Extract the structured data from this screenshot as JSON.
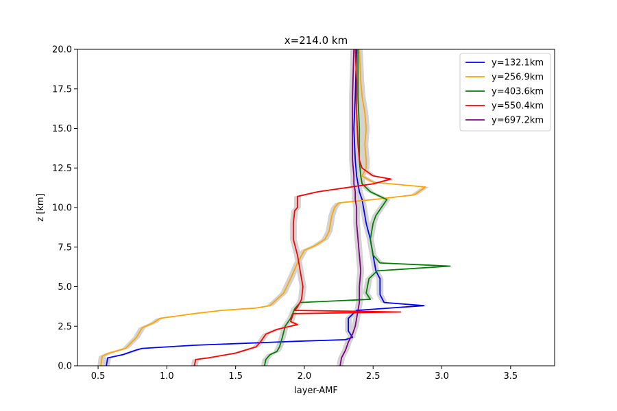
{
  "chart_data": {
    "type": "line",
    "title": "x=214.0 km",
    "xlabel": "layer-AMF",
    "ylabel": "z [km]",
    "xlim": [
      0.35,
      3.82
    ],
    "ylim": [
      0,
      20
    ],
    "xticks": [
      0.5,
      1.0,
      1.5,
      2.0,
      2.5,
      3.0,
      3.5
    ],
    "xtick_labels": [
      "0.5",
      "1.0",
      "1.5",
      "2.0",
      "2.5",
      "3.0",
      "3.5"
    ],
    "yticks": [
      0.0,
      2.5,
      5.0,
      7.5,
      10.0,
      12.5,
      15.0,
      17.5,
      20.0
    ],
    "ytick_labels": [
      "0.0",
      "2.5",
      "5.0",
      "7.5",
      "10.0",
      "12.5",
      "15.0",
      "17.5",
      "20.0"
    ],
    "grid": false,
    "legend_position": "top-right",
    "uncertainty_band_color": "#d3d3d3",
    "series": [
      {
        "name": "y=132.1km",
        "color": "#0000ff",
        "points": [
          [
            0.56,
            0.0
          ],
          [
            0.57,
            0.5
          ],
          [
            0.68,
            0.7
          ],
          [
            0.78,
            1.0
          ],
          [
            0.82,
            1.1
          ],
          [
            1.2,
            1.3
          ],
          [
            1.95,
            1.55
          ],
          [
            2.3,
            1.65
          ],
          [
            2.35,
            1.8
          ],
          [
            2.32,
            2.2
          ],
          [
            2.32,
            3.0
          ],
          [
            2.38,
            3.5
          ],
          [
            2.87,
            3.8
          ],
          [
            2.58,
            4.0
          ],
          [
            2.55,
            4.5
          ],
          [
            2.55,
            5.5
          ],
          [
            2.52,
            6.0
          ],
          [
            2.5,
            7.0
          ],
          [
            2.48,
            8.0
          ],
          [
            2.45,
            9.0
          ],
          [
            2.43,
            10.0
          ],
          [
            2.42,
            10.5
          ],
          [
            2.4,
            11.0
          ],
          [
            2.38,
            12.0
          ],
          [
            2.37,
            13.0
          ],
          [
            2.36,
            15.0
          ],
          [
            2.37,
            17.0
          ],
          [
            2.38,
            20.0
          ]
        ]
      },
      {
        "name": "y=256.9km",
        "color": "#ffa500",
        "points": [
          [
            0.52,
            0.0
          ],
          [
            0.53,
            0.6
          ],
          [
            0.58,
            0.8
          ],
          [
            0.7,
            1.1
          ],
          [
            0.78,
            1.8
          ],
          [
            0.82,
            2.4
          ],
          [
            0.9,
            2.7
          ],
          [
            0.95,
            3.0
          ],
          [
            1.2,
            3.3
          ],
          [
            1.4,
            3.5
          ],
          [
            1.65,
            3.65
          ],
          [
            1.75,
            3.8
          ],
          [
            1.8,
            4.2
          ],
          [
            1.85,
            4.6
          ],
          [
            1.9,
            5.5
          ],
          [
            1.95,
            6.5
          ],
          [
            2.0,
            7.3
          ],
          [
            2.08,
            7.6
          ],
          [
            2.15,
            8.0
          ],
          [
            2.18,
            8.5
          ],
          [
            2.2,
            9.5
          ],
          [
            2.22,
            10.0
          ],
          [
            2.25,
            10.3
          ],
          [
            2.5,
            10.5
          ],
          [
            2.8,
            10.8
          ],
          [
            2.88,
            11.3
          ],
          [
            2.5,
            11.6
          ],
          [
            2.42,
            12.0
          ],
          [
            2.45,
            12.5
          ],
          [
            2.45,
            13.0
          ],
          [
            2.44,
            14.0
          ],
          [
            2.45,
            15.0
          ],
          [
            2.44,
            16.0
          ],
          [
            2.42,
            17.0
          ],
          [
            2.41,
            18.0
          ],
          [
            2.4,
            20.0
          ]
        ]
      },
      {
        "name": "y=403.6km",
        "color": "#008000",
        "points": [
          [
            1.71,
            0.0
          ],
          [
            1.72,
            0.4
          ],
          [
            1.75,
            0.7
          ],
          [
            1.8,
            0.9
          ],
          [
            1.82,
            1.2
          ],
          [
            1.84,
            1.8
          ],
          [
            1.86,
            2.5
          ],
          [
            1.9,
            3.0
          ],
          [
            1.93,
            3.6
          ],
          [
            1.97,
            4.0
          ],
          [
            2.48,
            4.2
          ],
          [
            2.45,
            4.6
          ],
          [
            2.47,
            5.5
          ],
          [
            2.53,
            6.0
          ],
          [
            3.06,
            6.3
          ],
          [
            2.55,
            6.5
          ],
          [
            2.5,
            7.0
          ],
          [
            2.48,
            8.0
          ],
          [
            2.5,
            9.0
          ],
          [
            2.52,
            9.5
          ],
          [
            2.6,
            10.5
          ],
          [
            2.48,
            11.0
          ],
          [
            2.42,
            11.5
          ],
          [
            2.41,
            12.0
          ],
          [
            2.4,
            13.0
          ],
          [
            2.4,
            15.0
          ],
          [
            2.39,
            17.0
          ],
          [
            2.39,
            20.0
          ]
        ]
      },
      {
        "name": "y=550.4km",
        "color": "#ff0000",
        "points": [
          [
            1.2,
            0.0
          ],
          [
            1.21,
            0.4
          ],
          [
            1.3,
            0.5
          ],
          [
            1.5,
            0.8
          ],
          [
            1.65,
            1.2
          ],
          [
            1.68,
            1.5
          ],
          [
            1.72,
            2.0
          ],
          [
            1.8,
            2.3
          ],
          [
            1.95,
            2.6
          ],
          [
            1.9,
            2.8
          ],
          [
            1.92,
            3.3
          ],
          [
            2.7,
            3.4
          ],
          [
            1.93,
            3.5
          ],
          [
            1.95,
            3.7
          ],
          [
            1.98,
            4.2
          ],
          [
            1.99,
            5.0
          ],
          [
            1.97,
            6.0
          ],
          [
            1.95,
            7.0
          ],
          [
            1.92,
            8.0
          ],
          [
            1.92,
            9.0
          ],
          [
            1.93,
            9.8
          ],
          [
            1.95,
            10.0
          ],
          [
            1.95,
            10.7
          ],
          [
            2.1,
            11.0
          ],
          [
            2.5,
            11.5
          ],
          [
            2.63,
            11.8
          ],
          [
            2.5,
            12.0
          ],
          [
            2.42,
            12.5
          ],
          [
            2.4,
            13.0
          ],
          [
            2.39,
            14.0
          ],
          [
            2.38,
            16.0
          ],
          [
            2.38,
            18.0
          ],
          [
            2.37,
            20.0
          ]
        ]
      },
      {
        "name": "y=697.2km",
        "color": "#800080",
        "points": [
          [
            2.26,
            0.0
          ],
          [
            2.27,
            0.5
          ],
          [
            2.3,
            1.0
          ],
          [
            2.32,
            1.5
          ],
          [
            2.35,
            2.0
          ],
          [
            2.37,
            2.5
          ],
          [
            2.38,
            3.0
          ],
          [
            2.4,
            4.0
          ],
          [
            2.4,
            5.0
          ],
          [
            2.41,
            6.0
          ],
          [
            2.4,
            7.0
          ],
          [
            2.39,
            8.0
          ],
          [
            2.38,
            9.0
          ],
          [
            2.38,
            10.0
          ],
          [
            2.37,
            10.5
          ],
          [
            2.37,
            11.0
          ],
          [
            2.36,
            11.5
          ],
          [
            2.36,
            12.0
          ],
          [
            2.35,
            13.0
          ],
          [
            2.35,
            15.0
          ],
          [
            2.35,
            17.0
          ],
          [
            2.36,
            20.0
          ]
        ]
      }
    ]
  }
}
